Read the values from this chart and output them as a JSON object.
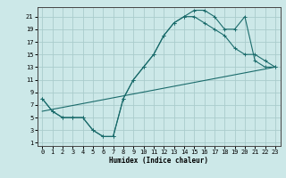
{
  "xlabel": "Humidex (Indice chaleur)",
  "bg_color": "#cce8e8",
  "grid_color": "#aacccc",
  "line_color": "#1a6b6b",
  "xlim": [
    -0.5,
    23.5
  ],
  "ylim": [
    0.5,
    22.5
  ],
  "xticks": [
    0,
    1,
    2,
    3,
    4,
    5,
    6,
    7,
    8,
    9,
    10,
    11,
    12,
    13,
    14,
    15,
    16,
    17,
    18,
    19,
    20,
    21,
    22,
    23
  ],
  "yticks": [
    1,
    3,
    5,
    7,
    9,
    11,
    13,
    15,
    17,
    19,
    21
  ],
  "curve1_x": [
    0,
    1,
    2,
    3,
    4,
    5,
    6,
    7,
    8,
    9,
    10,
    11,
    12,
    13,
    14,
    15,
    16,
    17,
    18,
    19,
    20,
    21,
    22,
    23
  ],
  "curve1_y": [
    8,
    6,
    5,
    5,
    5,
    3,
    2,
    2,
    8,
    11,
    13,
    15,
    18,
    20,
    21,
    22,
    22,
    21,
    19,
    19,
    21,
    14,
    13,
    13
  ],
  "curve2_x": [
    0,
    1,
    2,
    3,
    4,
    5,
    6,
    7,
    8,
    9,
    10,
    11,
    12,
    13,
    14,
    15,
    16,
    17,
    18,
    19,
    20,
    21,
    22,
    23
  ],
  "curve2_y": [
    8,
    6,
    5,
    5,
    5,
    3,
    2,
    2,
    8,
    11,
    13,
    15,
    18,
    20,
    21,
    21,
    20,
    19,
    18,
    16,
    15,
    15,
    14,
    13
  ],
  "line3_x": [
    0,
    23
  ],
  "line3_y": [
    6,
    13
  ]
}
